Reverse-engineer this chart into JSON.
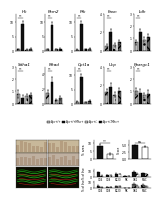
{
  "background": "#ffffff",
  "panel_a_rows": [
    {
      "panels": [
        {
          "title": "Hk",
          "groups": [
            {
              "val": 0.5,
              "err": 0.2,
              "hatch": "///",
              "color": "#bbbbbb"
            },
            {
              "val": 9.5,
              "err": 0.9,
              "hatch": "",
              "color": "#111111"
            },
            {
              "val": 0.4,
              "err": 0.2,
              "hatch": "...",
              "color": "#cccccc"
            },
            {
              "val": 0.7,
              "err": 0.3,
              "hatch": "xxx",
              "color": "#666666"
            }
          ],
          "ymax": 13,
          "yticks": [
            0,
            5,
            10
          ]
        },
        {
          "title": "Pkm2",
          "groups": [
            {
              "val": 0.5,
              "err": 0.2,
              "hatch": "///",
              "color": "#bbbbbb"
            },
            {
              "val": 9.0,
              "err": 1.0,
              "hatch": "",
              "color": "#111111"
            },
            {
              "val": 0.5,
              "err": 0.2,
              "hatch": "...",
              "color": "#cccccc"
            },
            {
              "val": 0.7,
              "err": 0.3,
              "hatch": "xxx",
              "color": "#666666"
            }
          ],
          "ymax": 13,
          "yticks": [
            0,
            5,
            10
          ]
        },
        {
          "title": "Pfk",
          "groups": [
            {
              "val": 0.4,
              "err": 0.2,
              "hatch": "///",
              "color": "#bbbbbb"
            },
            {
              "val": 9.5,
              "err": 0.9,
              "hatch": "",
              "color": "#111111"
            },
            {
              "val": 0.5,
              "err": 0.2,
              "hatch": "...",
              "color": "#cccccc"
            },
            {
              "val": 0.8,
              "err": 0.3,
              "hatch": "xxx",
              "color": "#666666"
            }
          ],
          "ymax": 13,
          "yticks": [
            0,
            5,
            10
          ]
        },
        {
          "title": "Fasn",
          "groups": [
            {
              "val": 0.5,
              "err": 0.2,
              "hatch": "///",
              "color": "#bbbbbb"
            },
            {
              "val": 2.0,
              "err": 0.4,
              "hatch": "",
              "color": "#111111"
            },
            {
              "val": 0.6,
              "err": 0.2,
              "hatch": "...",
              "color": "#cccccc"
            },
            {
              "val": 0.9,
              "err": 0.3,
              "hatch": "xxx",
              "color": "#666666"
            }
          ],
          "ymax": 4,
          "yticks": [
            0,
            2,
            4
          ]
        },
        {
          "title": "Ldh",
          "groups": [
            {
              "val": 0.7,
              "err": 0.2,
              "hatch": "///",
              "color": "#bbbbbb"
            },
            {
              "val": 1.5,
              "err": 0.3,
              "hatch": "",
              "color": "#111111"
            },
            {
              "val": 0.9,
              "err": 0.2,
              "hatch": "...",
              "color": "#cccccc"
            },
            {
              "val": 1.1,
              "err": 0.3,
              "hatch": "xxx",
              "color": "#666666"
            }
          ],
          "ymax": 3,
          "yticks": [
            0,
            1,
            2,
            3
          ]
        }
      ]
    },
    {
      "panels": [
        {
          "title": "Sdha1",
          "groups": [
            {
              "val": 0.8,
              "err": 0.3,
              "hatch": "///",
              "color": "#bbbbbb"
            },
            {
              "val": 0.5,
              "err": 0.2,
              "hatch": "",
              "color": "#111111"
            },
            {
              "val": 0.6,
              "err": 0.2,
              "hatch": "...",
              "color": "#cccccc"
            },
            {
              "val": 0.7,
              "err": 0.2,
              "hatch": "xxx",
              "color": "#666666"
            }
          ],
          "ymax": 3,
          "yticks": [
            0,
            1,
            2,
            3
          ]
        },
        {
          "title": "Mcad",
          "groups": [
            {
              "val": 1.5,
              "err": 0.4,
              "hatch": "///",
              "color": "#bbbbbb"
            },
            {
              "val": 3.0,
              "err": 0.6,
              "hatch": "",
              "color": "#111111"
            },
            {
              "val": 0.5,
              "err": 0.2,
              "hatch": "...",
              "color": "#cccccc"
            },
            {
              "val": 0.8,
              "err": 0.3,
              "hatch": "xxx",
              "color": "#666666"
            }
          ],
          "ymax": 5,
          "yticks": [
            0,
            2,
            4
          ]
        },
        {
          "title": "Cpt1a",
          "groups": [
            {
              "val": 0.8,
              "err": 0.3,
              "hatch": "///",
              "color": "#bbbbbb"
            },
            {
              "val": 9.5,
              "err": 1.0,
              "hatch": "",
              "color": "#111111"
            },
            {
              "val": 0.6,
              "err": 0.2,
              "hatch": "...",
              "color": "#cccccc"
            },
            {
              "val": 0.9,
              "err": 0.3,
              "hatch": "xxx",
              "color": "#666666"
            }
          ],
          "ymax": 13,
          "yticks": [
            0,
            5,
            10
          ]
        },
        {
          "title": "Ucp",
          "groups": [
            {
              "val": 1.3,
              "err": 0.3,
              "hatch": "///",
              "color": "#bbbbbb"
            },
            {
              "val": 1.8,
              "err": 0.4,
              "hatch": "",
              "color": "#111111"
            },
            {
              "val": 1.0,
              "err": 0.3,
              "hatch": "...",
              "color": "#cccccc"
            },
            {
              "val": 1.4,
              "err": 0.3,
              "hatch": "xxx",
              "color": "#666666"
            }
          ],
          "ymax": 4,
          "yticks": [
            0,
            2,
            4
          ]
        },
        {
          "title": "Ppargc1",
          "groups": [
            {
              "val": 1.0,
              "err": 0.3,
              "hatch": "///",
              "color": "#bbbbbb"
            },
            {
              "val": 0.9,
              "err": 0.3,
              "hatch": "",
              "color": "#111111"
            },
            {
              "val": 0.7,
              "err": 0.2,
              "hatch": "...",
              "color": "#cccccc"
            },
            {
              "val": 0.8,
              "err": 0.3,
              "hatch": "xxx",
              "color": "#666666"
            }
          ],
          "ymax": 3,
          "yticks": [
            0,
            1,
            2,
            3
          ]
        }
      ]
    }
  ],
  "legend_labels": [
    "Apc+/+",
    "Apc+/+Mhc+",
    "Apc+/-",
    "Apc+/-Mhc+"
  ],
  "legend_colors": [
    "#bbbbbb",
    "#111111",
    "#cccccc",
    "#666666"
  ],
  "legend_hatches": [
    "///",
    "",
    "...",
    "xxx"
  ],
  "panel_c_data": {
    "bars": [
      {
        "val": 8.5,
        "err": 1.0,
        "color": "#111111",
        "hatch": ""
      },
      {
        "val": 3.0,
        "err": 0.6,
        "color": "#ffffff",
        "hatch": ""
      }
    ],
    "ylabel": "% area",
    "ymax": 12,
    "sig_text": "**"
  },
  "panel_d_data": {
    "bars": [
      {
        "val": 5.0,
        "err": 0.3,
        "color": "#111111",
        "hatch": ""
      },
      {
        "val": 4.6,
        "err": 0.3,
        "color": "#ffffff",
        "hatch": ""
      }
    ],
    "ylabel": "Score",
    "ymax": 7,
    "sig_text": "ns"
  },
  "panel_e_data": {
    "groups": [
      "CD4",
      "CD8",
      "B220",
      "NK",
      "GR1",
      "MAC"
    ],
    "series": [
      {
        "vals": [
          7.0,
          3.0,
          5.0,
          1.5,
          8.0,
          6.0
        ],
        "errs": [
          1.0,
          0.5,
          0.8,
          0.3,
          1.0,
          0.8
        ],
        "color": "#111111",
        "hatch": ""
      },
      {
        "vals": [
          2.0,
          2.5,
          4.5,
          1.0,
          5.0,
          4.5
        ],
        "errs": [
          0.4,
          0.5,
          0.7,
          0.3,
          0.8,
          0.7
        ],
        "color": "#ffffff",
        "hatch": "///"
      }
    ],
    "ylabel": "% of live",
    "ymax": 12
  },
  "panel_f_data": {
    "groups": [
      "CD4",
      "CD8",
      "B220",
      "NK",
      "GR1",
      "MAC"
    ],
    "series": [
      {
        "vals": [
          4.0,
          2.0,
          3.5,
          1.0,
          7.0,
          5.5
        ],
        "errs": [
          0.7,
          0.4,
          0.6,
          0.2,
          1.0,
          0.8
        ],
        "color": "#666666",
        "hatch": "xxx"
      },
      {
        "vals": [
          1.5,
          1.8,
          3.0,
          0.8,
          4.0,
          3.5
        ],
        "errs": [
          0.3,
          0.4,
          0.5,
          0.2,
          0.7,
          0.6
        ],
        "color": "#cccccc",
        "hatch": "..."
      }
    ],
    "ylabel": "% of live",
    "ymax": 12
  },
  "ihc_color_top": "#c9b49a",
  "ihc_color_bot": "#bfb0a0",
  "fluo_bg": "#0a0a00",
  "flow_bg": "#f8f8f8"
}
